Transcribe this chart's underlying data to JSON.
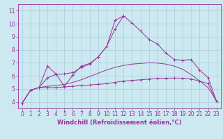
{
  "xlabel": "Windchill (Refroidissement éolien,°C)",
  "bg_color": "#cce8f0",
  "line_color": "#993399",
  "grid_color": "#aaccdd",
  "xlim": [
    -0.5,
    23.5
  ],
  "ylim": [
    3.5,
    11.5
  ],
  "xticks": [
    0,
    1,
    2,
    3,
    4,
    5,
    6,
    7,
    8,
    9,
    10,
    11,
    12,
    13,
    14,
    15,
    16,
    17,
    18,
    19,
    20,
    21,
    22,
    23
  ],
  "yticks": [
    4,
    5,
    6,
    7,
    8,
    9,
    10,
    11
  ],
  "tick_fontsize": 5.5,
  "xlabel_fontsize": 6.0,
  "curve1_x": [
    0,
    1,
    2,
    3,
    4,
    5,
    6,
    7,
    8,
    9,
    10,
    11,
    12,
    13,
    14,
    15,
    16,
    17,
    18,
    19,
    20,
    21,
    22,
    23
  ],
  "curve1_y": [
    3.9,
    4.9,
    5.1,
    5.1,
    5.1,
    5.15,
    5.2,
    5.25,
    5.3,
    5.35,
    5.4,
    5.5,
    5.6,
    5.65,
    5.7,
    5.75,
    5.8,
    5.82,
    5.83,
    5.82,
    5.75,
    5.6,
    5.4,
    4.05
  ],
  "curve2_x": [
    0,
    1,
    2,
    3,
    4,
    5,
    6,
    7,
    8,
    9,
    10,
    11,
    12,
    13,
    14,
    15,
    16,
    17,
    18,
    19,
    20,
    21,
    22,
    23
  ],
  "curve2_y": [
    3.9,
    4.9,
    5.1,
    5.2,
    5.25,
    5.35,
    5.5,
    5.7,
    5.95,
    6.2,
    6.45,
    6.65,
    6.8,
    6.9,
    6.95,
    7.0,
    6.98,
    6.9,
    6.75,
    6.5,
    6.1,
    5.6,
    5.1,
    4.05
  ],
  "curve3_x": [
    0,
    1,
    2,
    3,
    4,
    5,
    6,
    7,
    8,
    9,
    10,
    11,
    12,
    13,
    14,
    15,
    16,
    17,
    18,
    19,
    20,
    21,
    22,
    23
  ],
  "curve3_y": [
    3.9,
    4.9,
    5.1,
    5.85,
    6.1,
    6.15,
    6.25,
    6.65,
    6.9,
    7.45,
    8.25,
    10.25,
    10.6,
    10.05,
    9.45,
    8.8,
    8.45,
    7.75,
    7.25,
    7.2,
    7.25,
    6.45,
    5.85,
    4.05
  ],
  "curve4_x": [
    2,
    3,
    4,
    5,
    6,
    7,
    8,
    9,
    10,
    11,
    12
  ],
  "curve4_y": [
    5.1,
    6.75,
    6.15,
    5.2,
    6.05,
    6.75,
    6.95,
    7.45,
    8.25,
    9.6,
    10.6
  ]
}
